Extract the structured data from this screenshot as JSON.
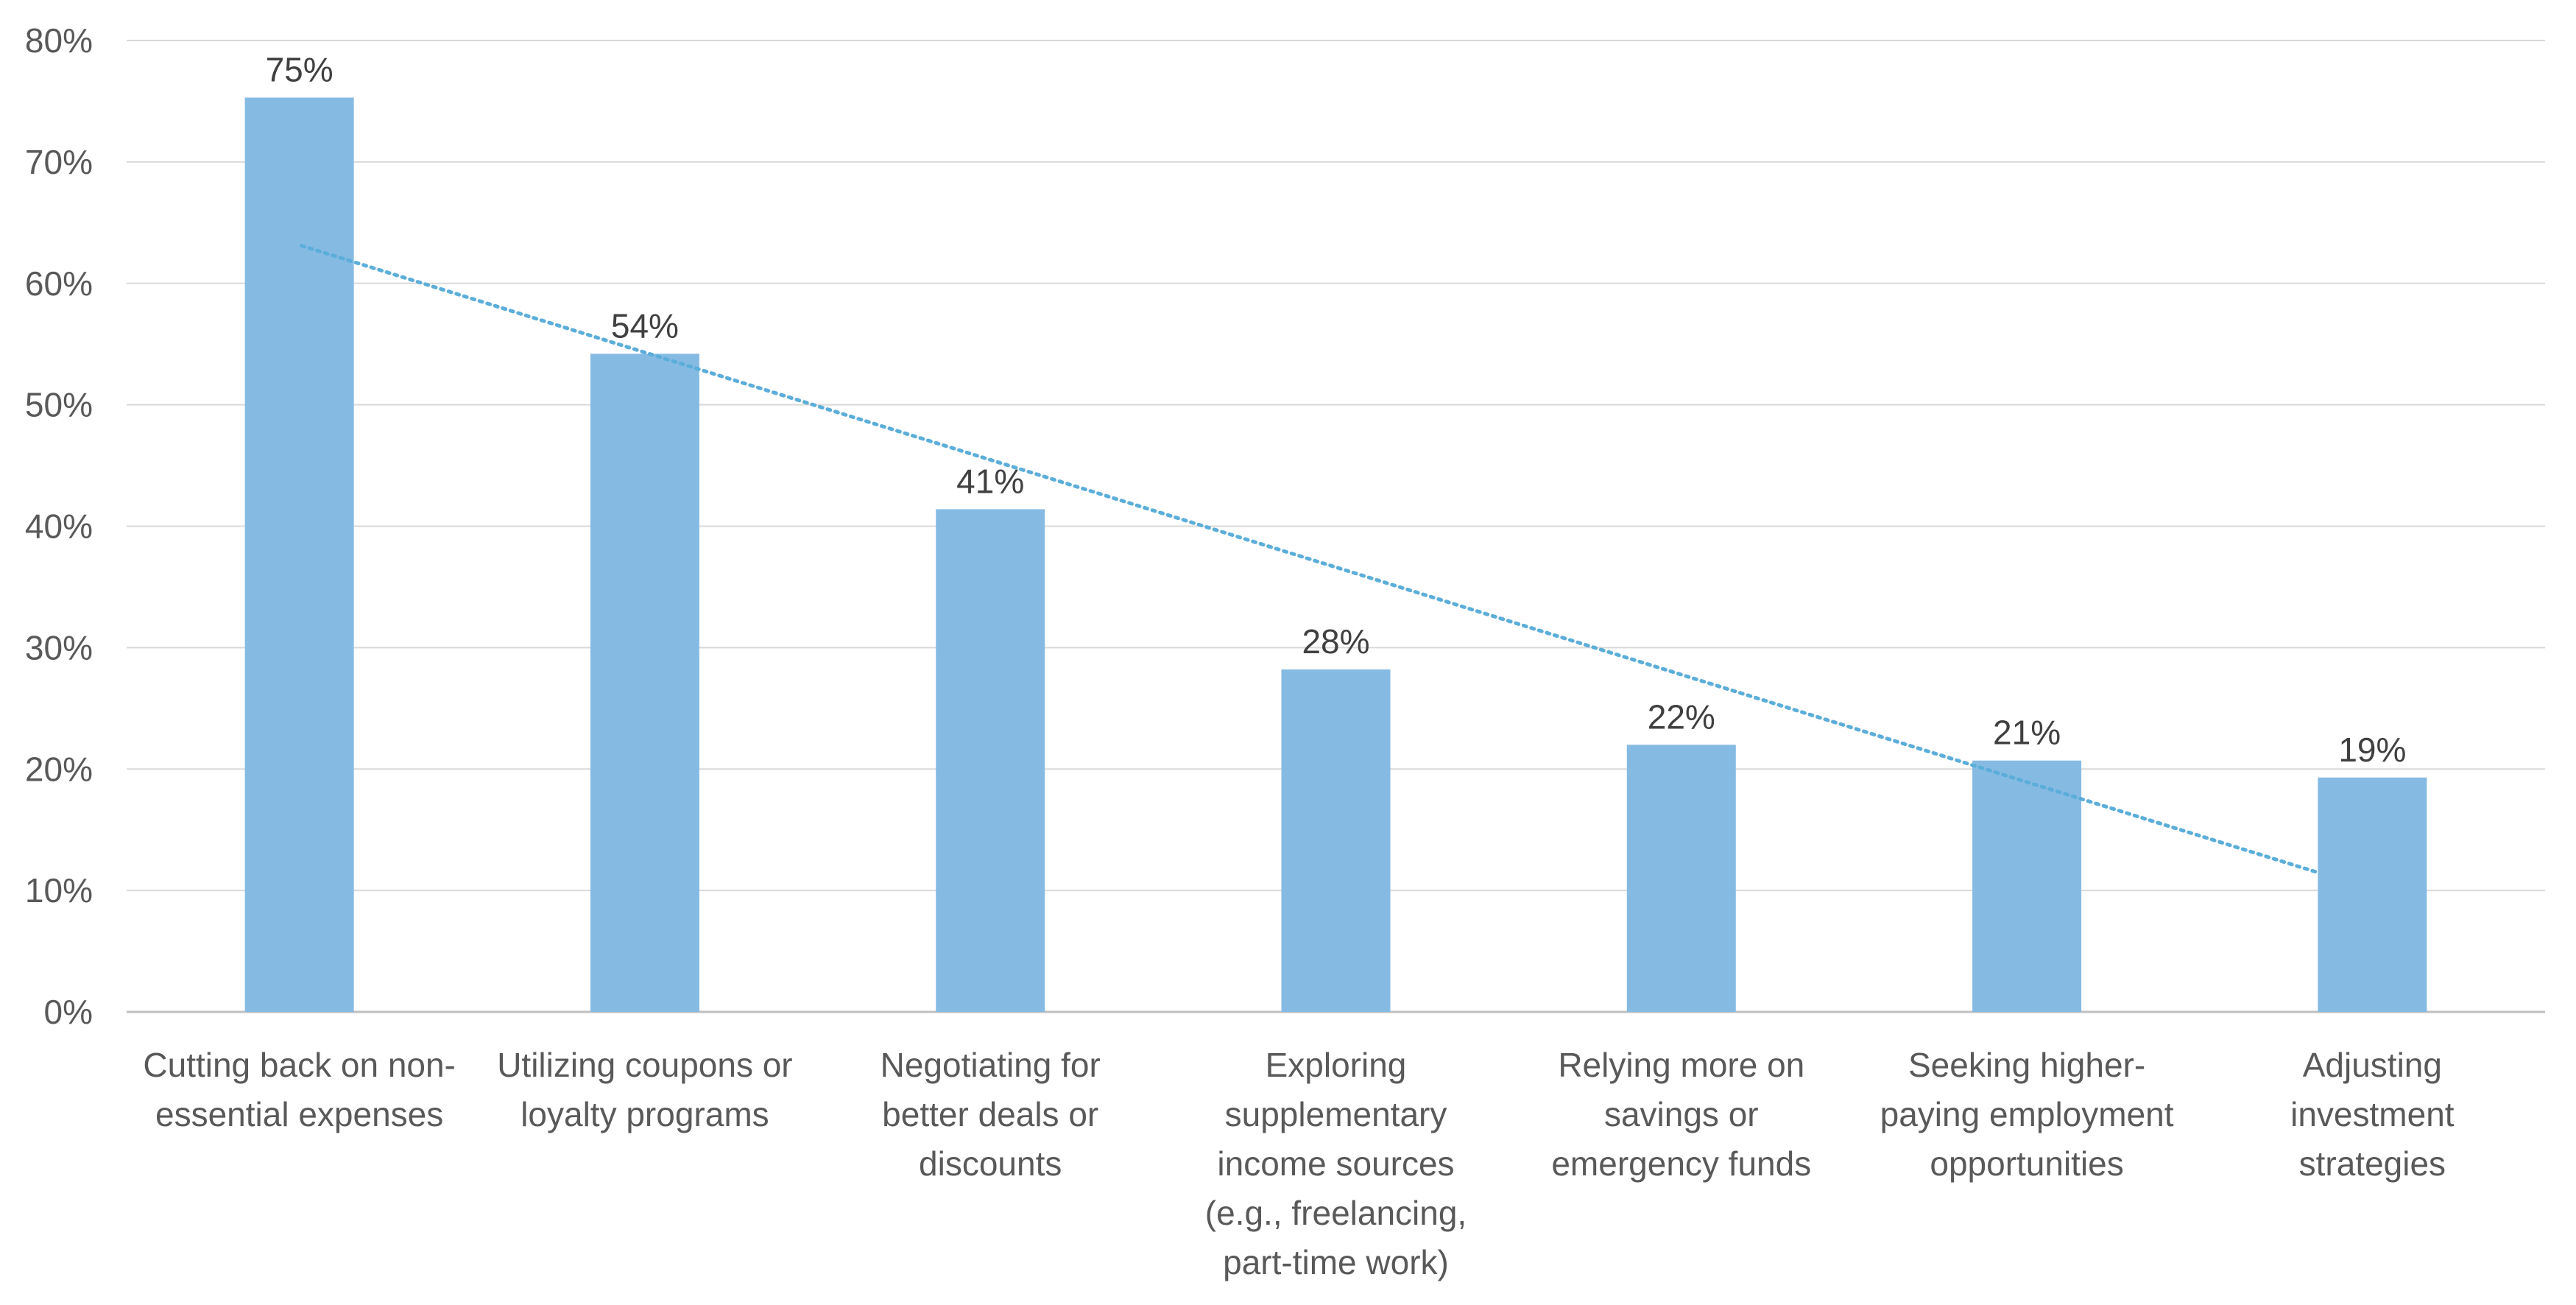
{
  "chart_data": {
    "type": "bar",
    "categories": [
      [
        "Cutting back on non-",
        "essential expenses"
      ],
      [
        "Utilizing coupons or",
        "loyalty programs"
      ],
      [
        "Negotiating for",
        "better deals or",
        "discounts"
      ],
      [
        "Exploring",
        "supplementary",
        "income sources",
        "(e.g., freelancing,",
        "part-time work)"
      ],
      [
        "Relying more on",
        "savings or",
        "emergency funds"
      ],
      [
        "Seeking higher-",
        "paying employment",
        "opportunities"
      ],
      [
        "Adjusting",
        "investment",
        "strategies"
      ]
    ],
    "values": [
      75.3,
      54.2,
      41.4,
      28.2,
      22.0,
      20.7,
      19.3
    ],
    "data_labels": [
      "75%",
      "54%",
      "41%",
      "28%",
      "22%",
      "21%",
      "19%"
    ],
    "ylim": [
      0,
      80
    ],
    "yticks": [
      0,
      10,
      20,
      30,
      40,
      50,
      60,
      70,
      80
    ],
    "ytick_labels": [
      "0%",
      "10%",
      "20%",
      "30%",
      "40%",
      "50%",
      "60%",
      "70%",
      "80%"
    ],
    "trendline": {
      "type": "linear",
      "style": "dotted",
      "start": 63.1,
      "end": 11.5
    },
    "grid": true,
    "legend": "none",
    "title": "",
    "xlabel": "",
    "ylabel": "",
    "colors": {
      "bar": "#85BBE3",
      "trendline": "#5BAED9",
      "grid": "#D9D9D9",
      "axis": "#BFBFBF"
    }
  }
}
